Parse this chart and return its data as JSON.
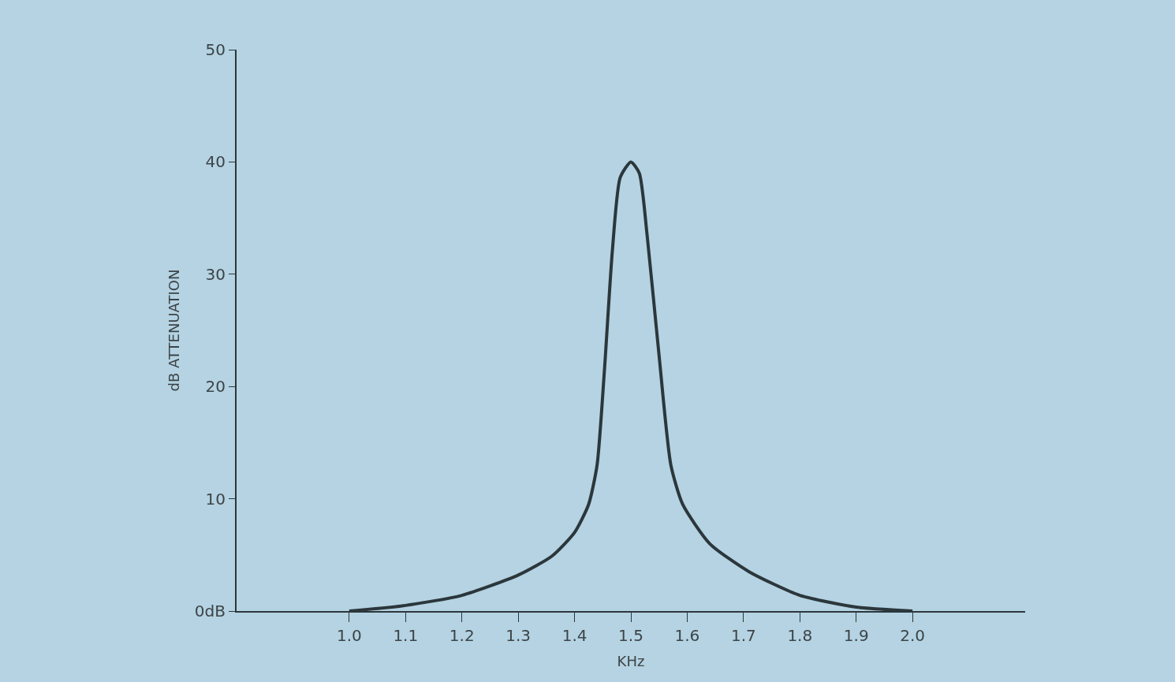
{
  "chart_data": {
    "type": "line",
    "xlabel": "KHz",
    "ylabel": "dB ATTENUATION",
    "x": [
      1.0,
      1.1,
      1.2,
      1.3,
      1.36,
      1.4,
      1.425,
      1.44,
      1.453,
      1.467,
      1.481,
      1.5,
      1.515,
      1.529,
      1.55,
      1.571,
      1.592,
      1.64,
      1.71,
      1.8,
      1.9,
      2.0
    ],
    "series": [
      {
        "color": "#2b373c",
        "values": [
          0,
          0.5,
          1.4,
          3.2,
          4.9,
          7.0,
          9.5,
          13,
          21.4,
          32,
          38.6,
          40,
          39,
          33.4,
          22.8,
          13,
          9.5,
          6,
          3.5,
          1.4,
          0.35,
          0
        ]
      }
    ],
    "xlim": [
      0.8,
      2.2
    ],
    "ylim": [
      0,
      50
    ],
    "xticks": [
      {
        "value": 1.0,
        "label": "1.0"
      },
      {
        "value": 1.1,
        "label": "1.1"
      },
      {
        "value": 1.2,
        "label": "1.2"
      },
      {
        "value": 1.3,
        "label": "1.3"
      },
      {
        "value": 1.4,
        "label": "1.4"
      },
      {
        "value": 1.5,
        "label": "1.5"
      },
      {
        "value": 1.6,
        "label": "1.6"
      },
      {
        "value": 1.7,
        "label": "1.7"
      },
      {
        "value": 1.8,
        "label": "1.8"
      },
      {
        "value": 1.9,
        "label": "1.9"
      },
      {
        "value": 2.0,
        "label": "2.0"
      }
    ],
    "yticks": [
      {
        "value": 0,
        "label": "0dB"
      },
      10,
      20,
      30,
      40,
      50
    ],
    "grid": false,
    "marker": "none",
    "line_style": "solid"
  }
}
